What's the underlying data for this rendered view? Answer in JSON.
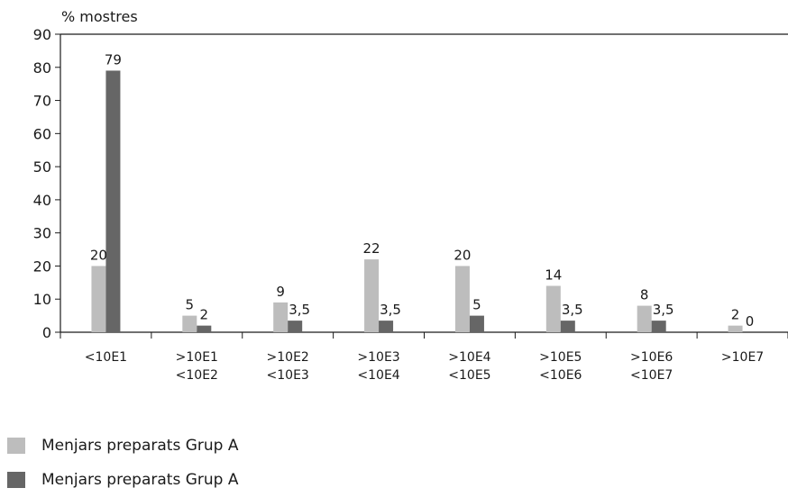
{
  "chart_data": {
    "type": "bar",
    "ylabel": "% mostres",
    "ylim": [
      0,
      90
    ],
    "yticks": [
      0,
      10,
      20,
      30,
      40,
      50,
      60,
      70,
      80,
      90
    ],
    "grid": false,
    "legend_position": "bottom-left",
    "categories": [
      [
        "<10E1"
      ],
      [
        ">10E1",
        "<10E2"
      ],
      [
        ">10E2",
        "<10E3"
      ],
      [
        ">10E3",
        "<10E4"
      ],
      [
        ">10E4",
        "<10E5"
      ],
      [
        ">10E5",
        "<10E6"
      ],
      [
        ">10E6",
        "<10E7"
      ],
      [
        ">10E7"
      ]
    ],
    "series": [
      {
        "name": "Menjars preparats Grup A",
        "color": "#bdbdbd",
        "values": [
          20,
          5,
          9,
          22,
          20,
          14,
          8,
          2
        ],
        "labels": [
          "20",
          "5",
          "9",
          "22",
          "20",
          "14",
          "8",
          "2"
        ]
      },
      {
        "name": "Menjars preparats Grup A",
        "color": "#666666",
        "values": [
          79,
          2,
          3.5,
          3.5,
          5,
          3.5,
          3.5,
          0
        ],
        "labels": [
          "79",
          "2",
          "3,5",
          "3,5",
          "5",
          "3,5",
          "3,5",
          "0"
        ]
      }
    ]
  }
}
